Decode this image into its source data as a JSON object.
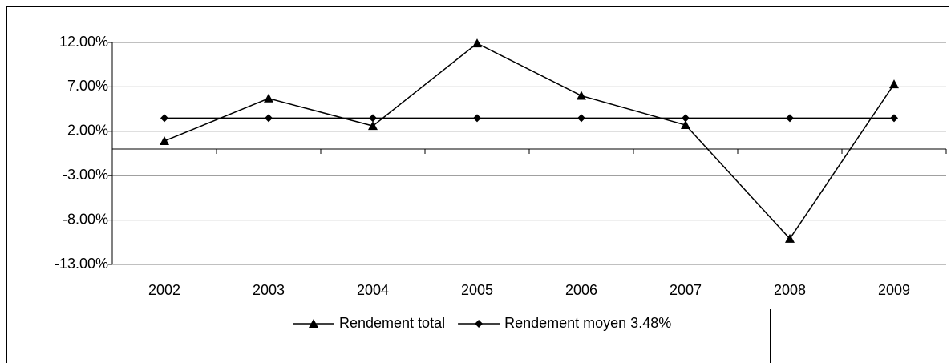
{
  "chart_data": {
    "type": "line",
    "categories": [
      "2002",
      "2003",
      "2004",
      "2005",
      "2006",
      "2007",
      "2008",
      "2009"
    ],
    "series": [
      {
        "name": "Rendement total",
        "color": "#000000",
        "marker": "triangle",
        "values": [
          0.9,
          5.7,
          2.6,
          11.9,
          6.0,
          2.7,
          -10.1,
          7.3
        ]
      },
      {
        "name": "Rendement moyen 3.48%",
        "color": "#000000",
        "marker": "diamond",
        "values": [
          3.48,
          3.48,
          3.48,
          3.48,
          3.48,
          3.48,
          3.48,
          3.48
        ]
      }
    ],
    "ylim": [
      -13,
      12
    ],
    "yticks": [
      {
        "value": -13,
        "label": "-13.00%"
      },
      {
        "value": -8,
        "label": "-8.00%"
      },
      {
        "value": -3,
        "label": "-3.00%"
      },
      {
        "value": 2,
        "label": "2.00%"
      },
      {
        "value": 7,
        "label": "7.00%"
      },
      {
        "value": 12,
        "label": "12.00%"
      }
    ],
    "grid": true,
    "legend": "bottom"
  }
}
